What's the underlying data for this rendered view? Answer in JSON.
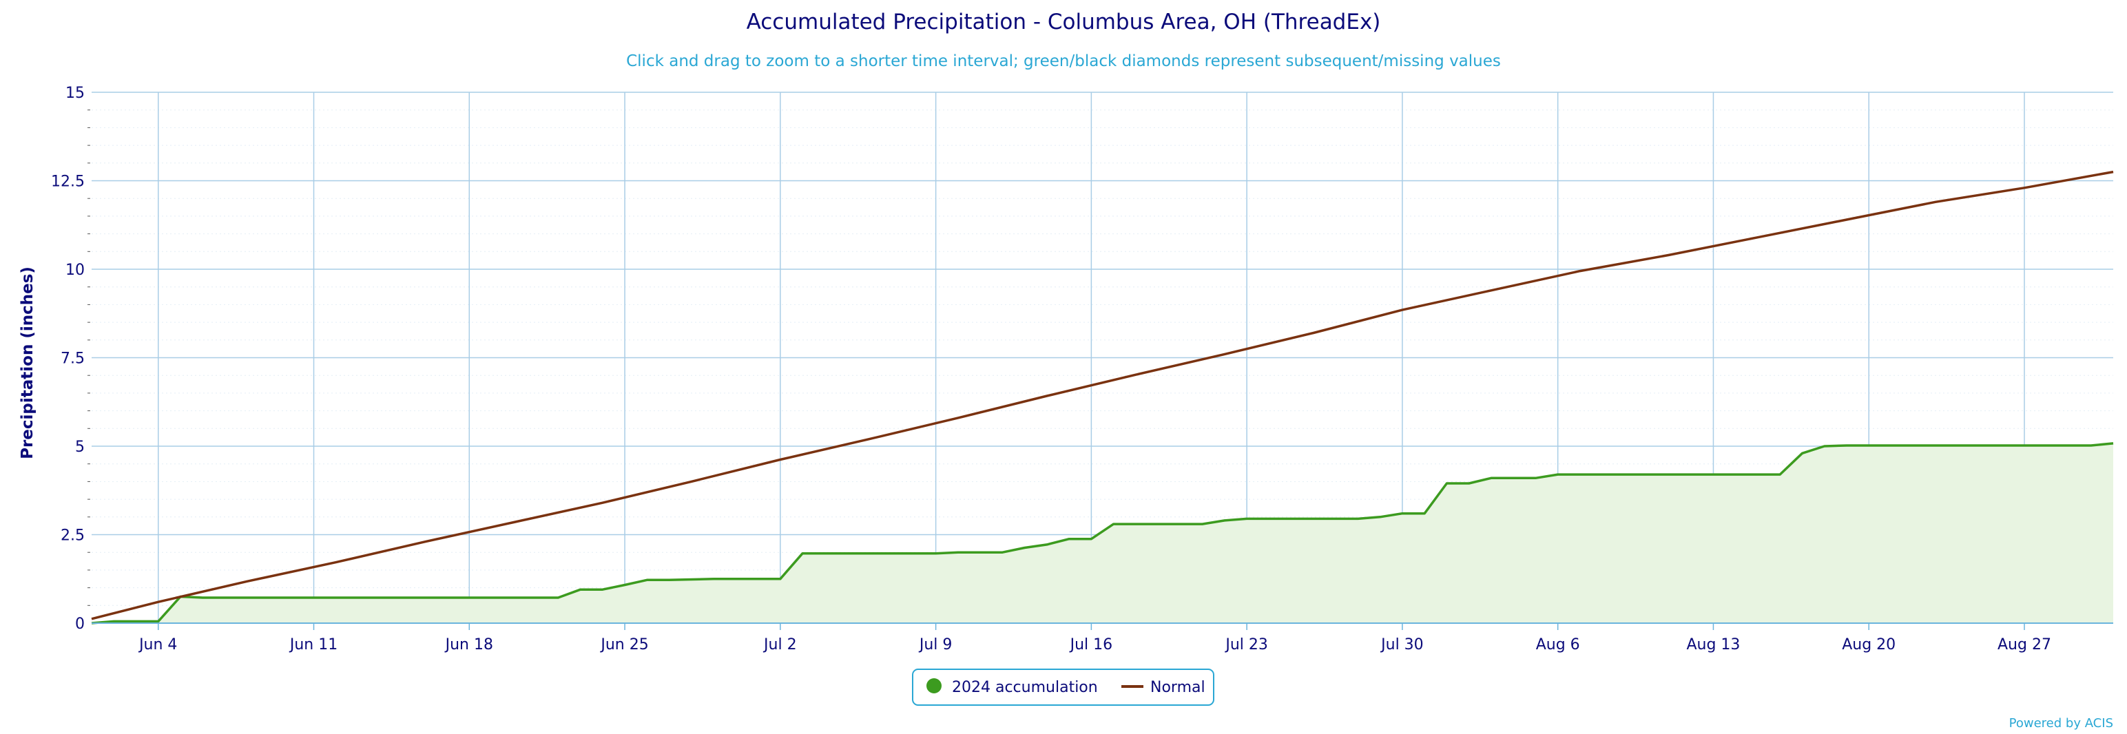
{
  "colors": {
    "title": "#0b0b7a",
    "subtitle": "#2aa7d4",
    "grid": "#a9cde6",
    "axis": "#6ab4dd",
    "tick_text": "#0b0b7a",
    "accumulation": "#3c9b1f",
    "accumulation_fill": "#e8f4e1",
    "normal": "#7a3210",
    "credit": "#2aa7d4"
  },
  "chart_data": {
    "type": "line",
    "title": "Accumulated Precipitation - Columbus Area, OH (ThreadEx)",
    "subtitle": "Click and drag to zoom to a shorter time interval; green/black diamonds represent subsequent/missing values",
    "ylabel": "Precipitation (inches)",
    "xlabel": "",
    "ylim": [
      0,
      15
    ],
    "y_ticks": [
      0,
      2.5,
      5,
      7.5,
      10,
      12.5,
      15
    ],
    "y_tick_labels": [
      "0",
      "2.5",
      "5",
      "7.5",
      "10",
      "12.5",
      "15"
    ],
    "x_range": [
      "2024-06-01",
      "2024-08-31"
    ],
    "x_ticks": [
      "2024-06-04",
      "2024-06-11",
      "2024-06-18",
      "2024-06-25",
      "2024-07-02",
      "2024-07-09",
      "2024-07-16",
      "2024-07-23",
      "2024-07-30",
      "2024-08-06",
      "2024-08-13",
      "2024-08-20",
      "2024-08-27"
    ],
    "x_tick_labels": [
      "Jun 4",
      "Jun 11",
      "Jun 18",
      "Jun 25",
      "Jul 2",
      "Jul 9",
      "Jul 16",
      "Jul 23",
      "Jul 30",
      "Aug 6",
      "Aug 13",
      "Aug 20",
      "Aug 27"
    ],
    "grid": true,
    "legend_position": "bottom-center",
    "series": [
      {
        "name": "2024 accumulation",
        "style": "area",
        "x": [
          "2024-06-01",
          "2024-06-02",
          "2024-06-04",
          "2024-06-05",
          "2024-06-06",
          "2024-06-22",
          "2024-06-23",
          "2024-06-24",
          "2024-06-25",
          "2024-06-26",
          "2024-06-27",
          "2024-06-29",
          "2024-06-30",
          "2024-07-02",
          "2024-07-03",
          "2024-07-09",
          "2024-07-10",
          "2024-07-12",
          "2024-07-13",
          "2024-07-14",
          "2024-07-15",
          "2024-07-16",
          "2024-07-17",
          "2024-07-21",
          "2024-07-22",
          "2024-07-23",
          "2024-07-28",
          "2024-07-29",
          "2024-07-30",
          "2024-07-31",
          "2024-08-01",
          "2024-08-02",
          "2024-08-03",
          "2024-08-05",
          "2024-08-06",
          "2024-08-16",
          "2024-08-17",
          "2024-08-18",
          "2024-08-19",
          "2024-08-30",
          "2024-08-31"
        ],
        "y": [
          0.0,
          0.05,
          0.05,
          0.75,
          0.72,
          0.72,
          0.95,
          0.95,
          1.08,
          1.22,
          1.22,
          1.25,
          1.25,
          1.25,
          1.97,
          1.97,
          2.0,
          2.0,
          2.13,
          2.22,
          2.38,
          2.38,
          2.8,
          2.8,
          2.9,
          2.95,
          2.95,
          3.0,
          3.1,
          3.1,
          3.95,
          3.95,
          4.1,
          4.1,
          4.2,
          4.2,
          4.8,
          5.0,
          5.02,
          5.02,
          5.08
        ]
      },
      {
        "name": "Normal",
        "style": "line",
        "x": [
          "2024-06-01",
          "2024-06-04",
          "2024-06-08",
          "2024-06-12",
          "2024-06-16",
          "2024-06-20",
          "2024-06-24",
          "2024-06-28",
          "2024-07-02",
          "2024-07-06",
          "2024-07-10",
          "2024-07-14",
          "2024-07-18",
          "2024-07-22",
          "2024-07-26",
          "2024-07-30",
          "2024-08-03",
          "2024-08-07",
          "2024-08-11",
          "2024-08-15",
          "2024-08-19",
          "2024-08-23",
          "2024-08-27",
          "2024-08-31"
        ],
        "y": [
          0.12,
          0.6,
          1.18,
          1.72,
          2.3,
          2.85,
          3.4,
          4.0,
          4.62,
          5.2,
          5.8,
          6.42,
          7.02,
          7.6,
          8.2,
          8.85,
          9.4,
          9.95,
          10.4,
          10.9,
          11.4,
          11.9,
          12.3,
          12.75
        ]
      }
    ],
    "legend": [
      "2024 accumulation",
      "Normal"
    ]
  },
  "credit": "Powered by ACIS"
}
